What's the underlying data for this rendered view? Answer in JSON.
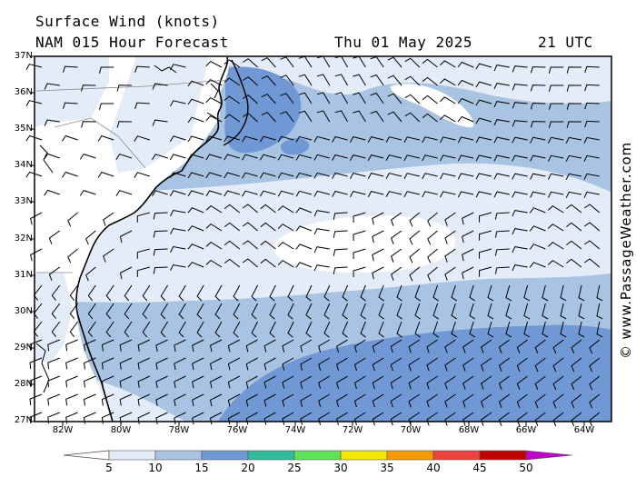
{
  "title_line1": "Surface Wind (knots)",
  "title_line2": "NAM 015 Hour Forecast",
  "valid_date": "Thu 01 May 2025",
  "valid_time": "21 UTC",
  "credit": "© www.PassageWeather.com",
  "lat_labels": [
    "37N",
    "36N",
    "35N",
    "34N",
    "33N",
    "32N",
    "31N",
    "30N",
    "29N",
    "28N",
    "27N"
  ],
  "lon_labels": [
    "82W",
    "80W",
    "78W",
    "76W",
    "74W",
    "72W",
    "70W",
    "68W",
    "66W",
    "64W"
  ],
  "colorbar": {
    "labels": [
      "5",
      "10",
      "15",
      "20",
      "25",
      "30",
      "35",
      "40",
      "45",
      "50"
    ],
    "colors": [
      "#e4ecf8",
      "#a9c3e3",
      "#6f98d4",
      "#2ebc9a",
      "#5fe35a",
      "#f4e800",
      "#f49a00",
      "#ee4140",
      "#c30000",
      "#c000c8"
    ]
  },
  "colors": {
    "land": "#ffffff",
    "wind_5": "#e4ecf8",
    "wind_10": "#a9c3e3",
    "wind_15": "#6f98d4",
    "coast": "#000000"
  },
  "icons": [
    "wind-barb-icon",
    "coastline",
    "state-border"
  ]
}
